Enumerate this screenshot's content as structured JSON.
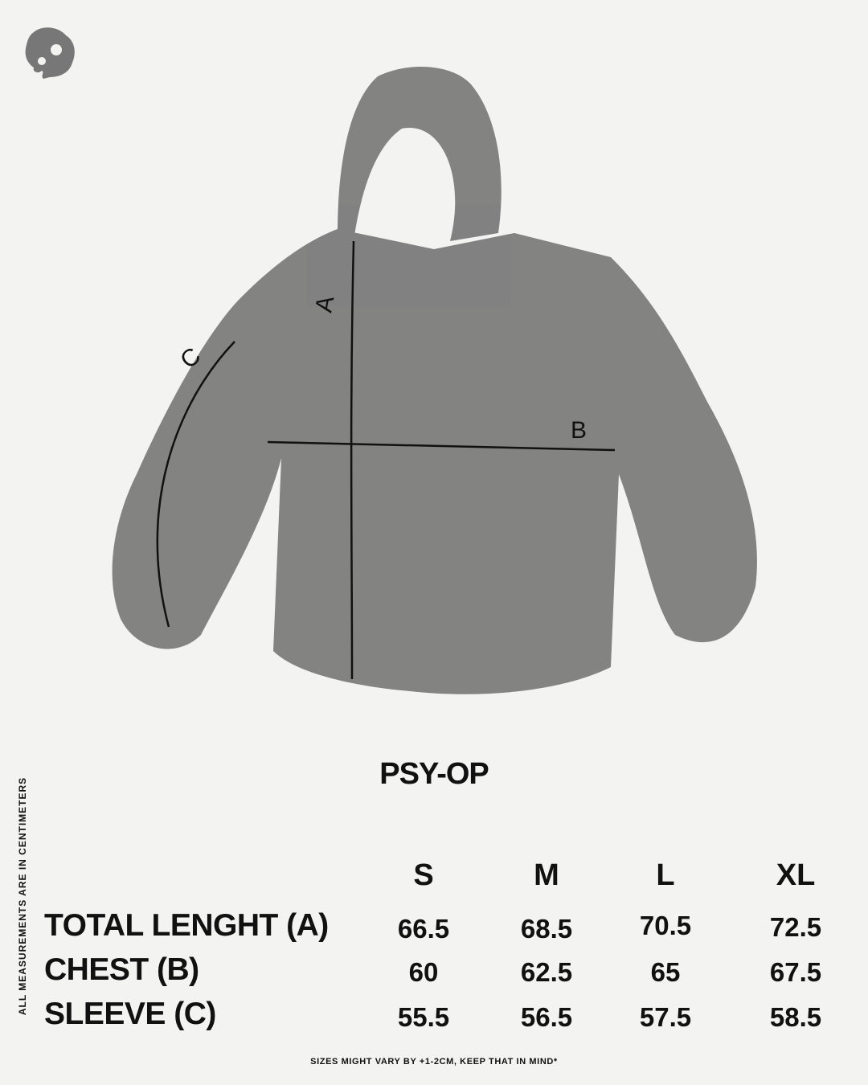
{
  "brand": {
    "logo_icon": "blob-logo-icon"
  },
  "diagram": {
    "labels": {
      "a": "A",
      "b": "B",
      "c": "C"
    },
    "fill_color": "#6e6e6e"
  },
  "side_note": "ALL MEASUREMENTS ARE IN CENTIMETERS",
  "title": "PSY-OP",
  "size_chart": {
    "sizes": [
      "S",
      "M",
      "L",
      "XL"
    ],
    "rows": [
      {
        "label": "TOTAL LENGHT (A)",
        "values": [
          "66.5",
          "68.5",
          "70.5",
          "72.5"
        ]
      },
      {
        "label": "CHEST (B)",
        "values": [
          "60",
          "62.5",
          "65",
          "67.5"
        ]
      },
      {
        "label": "SLEEVE (C)",
        "values": [
          "55.5",
          "56.5",
          "57.5",
          "58.5"
        ]
      }
    ]
  },
  "footnote": "SIZES MIGHT VARY BY +1-2CM, KEEP THAT IN MIND*"
}
